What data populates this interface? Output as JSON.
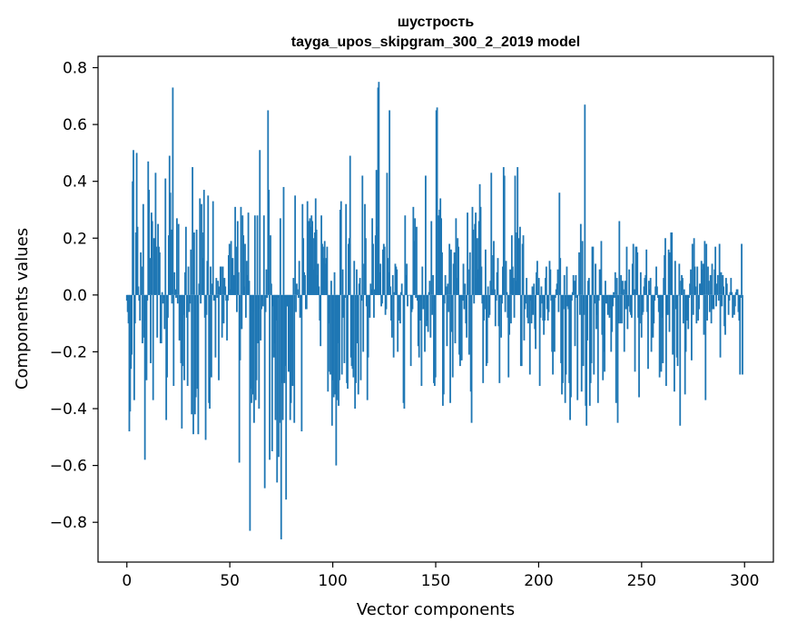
{
  "chart_data": {
    "type": "bar",
    "title": "шустрость",
    "subtitle": "tayga_upos_skipgram_300_2_2019 model",
    "xlabel": "Vector components",
    "ylabel": "Components values",
    "xlim": [
      -14,
      314
    ],
    "ylim": [
      -0.94,
      0.84
    ],
    "xticks": [
      0,
      50,
      100,
      150,
      200,
      250,
      300
    ],
    "xtick_labels": [
      "0",
      "50",
      "100",
      "150",
      "200",
      "250",
      "300"
    ],
    "yticks": [
      -0.8,
      -0.6,
      -0.4,
      -0.2,
      0.0,
      0.2,
      0.4,
      0.6,
      0.8
    ],
    "ytick_labels": [
      "−0.8",
      "−0.6",
      "−0.4",
      "−0.2",
      "0.0",
      "0.2",
      "0.4",
      "0.6",
      "0.8"
    ],
    "bar_color": "#1f77b4",
    "grid": false,
    "values": [
      -0.02,
      -0.06,
      -0.1,
      -0.48,
      -0.41,
      -0.26,
      -0.21,
      0.4,
      0.51,
      -0.37,
      -0.1,
      0.22,
      0.5,
      0.24,
      0.03,
      -0.02,
      -0.09,
      0.15,
      0.1,
      -0.17,
      0.32,
      -0.15,
      -0.58,
      -0.09,
      -0.3,
      -0.02,
      0.47,
      0.37,
      0.13,
      -0.24,
      0.29,
      0.26,
      -0.37,
      0.2,
      0.09,
      0.43,
      0.17,
      -0.15,
      0.25,
      0.17,
      0.15,
      -0.17,
      -0.17,
      0.01,
      -0.03,
      -0.01,
      -0.12,
      0.41,
      -0.44,
      -0.29,
      -0.08,
      0.21,
      0.49,
      0.36,
      0.23,
      -0.03,
      0.73,
      -0.32,
      0.08,
      0.02,
      -0.01,
      0.27,
      -0.03,
      0.25,
      -0.16,
      -0.09,
      -0.24,
      -0.47,
      -0.25,
      -0.07,
      -0.3,
      0.08,
      0.24,
      -0.08,
      -0.32,
      0.1,
      -0.06,
      -0.03,
      0.16,
      -0.42,
      0.45,
      -0.49,
      0.22,
      -0.42,
      -0.36,
      0.23,
      -0.33,
      -0.49,
      0.04,
      0.34,
      -0.03,
      0.32,
      0.22,
      0.13,
      0.37,
      -0.08,
      -0.51,
      -0.07,
      0.12,
      0.35,
      -0.38,
      -0.4,
      0.1,
      -0.29,
      0.04,
      0.33,
      -0.02,
      0.0,
      -0.22,
      0.06,
      -0.01,
      0.05,
      -0.3,
      0.03,
      0.1,
      0.1,
      -0.15,
      0.1,
      -0.1,
      0.06,
      0.03,
      -0.02,
      -0.16,
      -0.02,
      0.14,
      0.18,
      0.02,
      0.19,
      0.08,
      0.13,
      0.07,
      0.07,
      0.31,
      0.17,
      -0.06,
      0.26,
      0.08,
      -0.59,
      -0.23,
      0.31,
      -0.12,
      0.28,
      0.21,
      0.03,
      0.18,
      -0.08,
      0.12,
      0.07,
      0.29,
      0.05,
      -0.83,
      -0.33,
      -0.38,
      -0.35,
      -0.06,
      -0.45,
      0.28,
      -0.37,
      -0.3,
      0.28,
      -0.17,
      -0.4,
      0.51,
      -0.16,
      -0.05,
      -0.02,
      -0.04,
      0.28,
      -0.68,
      -0.06,
      0.09,
      -0.01,
      0.65,
      0.37,
      -0.58,
      0.21,
      0.04,
      -0.55,
      -0.04,
      -0.22,
      -0.17,
      -0.44,
      -0.09,
      -0.66,
      -0.01,
      -0.57,
      -0.45,
      0.27,
      -0.86,
      -0.31,
      -0.44,
      0.38,
      -0.31,
      -0.25,
      -0.72,
      -0.04,
      -0.04,
      -0.27,
      -0.27,
      -0.44,
      -0.38,
      -0.2,
      -0.32,
      0.06,
      -0.45,
      0.35,
      -0.06,
      0.04,
      0.02,
      -0.01,
      0.12,
      -0.08,
      -0.07,
      -0.48,
      0.32,
      0.2,
      0.08,
      0.07,
      -0.05,
      -0.05,
      0.33,
      0.26,
      0.11,
      0.27,
      0.24,
      0.28,
      0.26,
      0.2,
      0.09,
      0.22,
      0.34,
      0.23,
      0.07,
      0.11,
      0.03,
      -0.09,
      -0.18,
      0.28,
      0.18,
      0.17,
      0.13,
      0.19,
      0.11,
      0.13,
      0.17,
      -0.34,
      -0.1,
      -0.27,
      -0.28,
      0.05,
      -0.46,
      -0.3,
      -0.36,
      0.08,
      -0.35,
      -0.6,
      -0.37,
      -0.17,
      -0.39,
      -0.3,
      0.3,
      0.33,
      -0.28,
      0.09,
      -0.08,
      -0.24,
      -0.01,
      0.32,
      -0.31,
      -0.33,
      0.18,
      0.2,
      0.49,
      -0.22,
      -0.25,
      -0.26,
      -0.29,
      0.12,
      -0.4,
      -0.31,
      0.09,
      -0.17,
      -0.35,
      0.04,
      0.06,
      -0.3,
      -0.02,
      0.42,
      -0.2,
      0.11,
      0.32,
      0.2,
      -0.04,
      -0.37,
      -0.22,
      -0.06,
      -0.08,
      0.04,
      0.02,
      0.27,
      0.18,
      -0.08,
      0.02,
      0.21,
      0.44,
      0.24,
      0.73,
      0.75,
      0.08,
      0.11,
      -0.04,
      -0.03,
      0.16,
      0.18,
      0.17,
      -0.07,
      -0.05,
      0.43,
      0.13,
      0.08,
      0.65,
      0.03,
      -0.09,
      -0.15,
      0.07,
      -0.22,
      0.01,
      0.11,
      0.1,
      0.09,
      -0.2,
      -0.06,
      -0.09,
      -0.1,
      0.01,
      0.04,
      0.0,
      -0.38,
      -0.4,
      0.28,
      0.07,
      0.11,
      -0.04,
      0.0,
      0.0,
      0.0,
      -0.25,
      -0.06,
      -0.05,
      0.31,
      0.19,
      0.27,
      -0.01,
      0.24,
      -0.02,
      -0.18,
      -0.22,
      -0.09,
      -0.02,
      -0.32,
      0.1,
      -0.05,
      -0.05,
      -0.2,
      0.42,
      -0.11,
      -0.09,
      -0.13,
      0.01,
      0.05,
      -0.15,
      0.26,
      -0.07,
      0.07,
      -0.31,
      -0.32,
      -0.29,
      0.65,
      0.66,
      0.03,
      0.28,
      0.3,
      0.34,
      0.27,
      0.15,
      -0.39,
      -0.35,
      -0.03,
      0.07,
      0.03,
      -0.18,
      0.04,
      -0.06,
      0.18,
      -0.38,
      0.16,
      -0.13,
      -0.29,
      0.11,
      0.15,
      -0.17,
      0.27,
      0.06,
      0.2,
      0.17,
      -0.21,
      -0.25,
      -0.23,
      -0.23,
      -0.02,
      0.11,
      -0.05,
      0.04,
      -0.1,
      -0.15,
      0.29,
      0.09,
      -0.21,
      0.15,
      -0.34,
      -0.45,
      0.31,
      0.23,
      -0.03,
      0.25,
      0.29,
      0.06,
      0.2,
      0.09,
      0.26,
      0.39,
      0.31,
      0.1,
      -0.03,
      -0.31,
      -0.09,
      -0.05,
      0.16,
      -0.25,
      -0.24,
      0.03,
      -0.08,
      -0.07,
      0.05,
      0.43,
      0.02,
      0.14,
      0.19,
      0.02,
      -0.11,
      -0.02,
      0.08,
      0.13,
      -0.11,
      -0.31,
      -0.01,
      -0.15,
      -0.03,
      0.1,
      0.45,
      0.42,
      -0.06,
      0.12,
      0.01,
      -0.08,
      -0.29,
      -0.14,
      0.09,
      -0.1,
      0.21,
      0.1,
      0.06,
      -0.08,
      0.42,
      0.05,
      0.22,
      0.45,
      0.2,
      0.1,
      0.24,
      -0.25,
      -0.25,
      0.18,
      0.21,
      -0.16,
      -0.05,
      -0.03,
      0.06,
      -0.08,
      -0.1,
      0.0,
      -0.28,
      -0.02,
      -0.1,
      0.03,
      -0.07,
      0.04,
      -0.12,
      -0.19,
      0.08,
      0.12,
      0.01,
      0.06,
      -0.32,
      -0.08,
      0.03,
      -0.03,
      -0.09,
      -0.14,
      -0.09,
      0.06,
      0.1,
      -0.05,
      -0.09,
      -0.06,
      0.12,
      0.09,
      -0.02,
      -0.2,
      -0.28,
      -0.03,
      -0.2,
      -0.01,
      0.02,
      0.04,
      0.09,
      -0.06,
      0.36,
      0.13,
      -0.24,
      -0.35,
      -0.31,
      -0.05,
      0.07,
      -0.38,
      -0.28,
      0.1,
      -0.04,
      -0.05,
      -0.31,
      -0.44,
      -0.36,
      -0.02,
      0.01,
      0.07,
      0.05,
      -0.18,
      0.07,
      -0.01,
      -0.37,
      0.0,
      0.15,
      -0.07,
      0.25,
      -0.34,
      0.19,
      -0.25,
      -0.07,
      0.67,
      -0.39,
      -0.46,
      -0.16,
      0.05,
      0.06,
      -0.39,
      -0.31,
      -0.24,
      0.17,
      0.17,
      -0.28,
      -0.03,
      0.11,
      -0.12,
      -0.07,
      -0.38,
      -0.02,
      0.09,
      0.09,
      0.19,
      -0.14,
      -0.3,
      -0.2,
      -0.27,
      0.05,
      -0.03,
      -0.03,
      -0.07,
      0.0,
      -0.08,
      -0.05,
      -0.2,
      -0.13,
      -0.04,
      0.01,
      -0.01,
      0.08,
      -0.38,
      0.06,
      -0.45,
      -0.1,
      0.26,
      -0.1,
      0.07,
      -0.1,
      0.05,
      0.02,
      -0.2,
      0.05,
      -0.05,
      0.17,
      -0.12,
      -0.04,
      0.09,
      -0.06,
      -0.07,
      -0.08,
      0.11,
      0.18,
      0.02,
      -0.27,
      0.17,
      0.17,
      0.15,
      -0.08,
      -0.36,
      -0.1,
      0.08,
      -0.15,
      -0.07,
      -0.06,
      0.03,
      0.06,
      0.07,
      0.16,
      -0.06,
      -0.26,
      0.05,
      0.02,
      0.06,
      -0.2,
      -0.06,
      -0.15,
      -0.1,
      -0.02,
      0.03,
      0.1,
      0.03,
      -0.01,
      -0.06,
      -0.29,
      -0.08,
      -0.27,
      -0.08,
      -0.24,
      0.06,
      0.14,
      0.2,
      -0.32,
      -0.07,
      -0.07,
      0.16,
      -0.13,
      0.15,
      0.22,
      0.22,
      -0.21,
      -0.07,
      -0.34,
      0.12,
      -0.05,
      -0.22,
      -0.25,
      0.0,
      0.11,
      -0.46,
      0.05,
      0.07,
      0.06,
      -0.1,
      0.02,
      -0.35,
      -0.2,
      -0.08,
      -0.09,
      -0.12,
      -0.01,
      0.04,
      0.09,
      -0.23,
      0.18,
      -0.07,
      0.2,
      0.1,
      0.03,
      -0.1,
      0.1,
      -0.09,
      -0.05,
      0.04,
      0.04,
      0.12,
      0.09,
      0.11,
      -0.14,
      0.19,
      -0.37,
      0.18,
      -0.09,
      0.1,
      0.05,
      -0.06,
      0.07,
      -0.1,
      0.11,
      -0.05,
      -0.05,
      0.09,
      0.17,
      -0.04,
      0.04,
      0.07,
      -0.02,
      0.18,
      -0.22,
      0.08,
      -0.04,
      0.07,
      0.03,
      -0.11,
      -0.14,
      0.06,
      0.04,
      0.0,
      -0.07,
      -0.02,
      0.01,
      0.06,
      0.01,
      -0.08,
      0.0,
      -0.07,
      -0.04,
      0.01,
      0.02,
      0.02,
      -0.06,
      -0.09,
      -0.28,
      -0.01,
      0.18,
      -0.28
    ]
  }
}
